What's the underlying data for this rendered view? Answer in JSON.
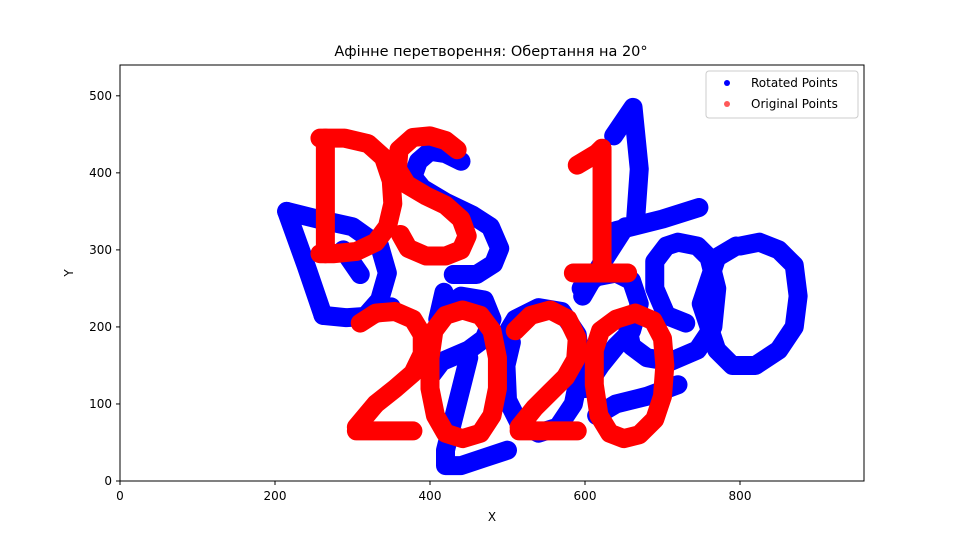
{
  "chart_data": {
    "type": "scatter",
    "title": "Афінне перетворення: Обертання на 20°",
    "xlabel": "X",
    "ylabel": "Y",
    "xlim": [
      0,
      960
    ],
    "ylim": [
      0,
      540
    ],
    "xticks": [
      0,
      200,
      400,
      600,
      800
    ],
    "yticks": [
      0,
      100,
      200,
      300,
      400,
      500
    ],
    "grid": false,
    "legend_placement": "top-right",
    "rotation_degrees": 20,
    "series": [
      {
        "name": "Rotated Points",
        "color": "#0000ff",
        "marker": "circle",
        "shape_text": "DS 1 2020",
        "strokes": [
          [
            [
              215,
              350
            ],
            [
              255,
              340
            ],
            [
              300,
              330
            ],
            [
              335,
              305
            ],
            [
              345,
              270
            ],
            [
              335,
              235
            ],
            [
              315,
              212
            ]
          ],
          [
            [
              215,
              350
            ],
            [
              240,
              280
            ],
            [
              262,
              215
            ]
          ],
          [
            [
              262,
              215
            ],
            [
              292,
              212
            ],
            [
              322,
              214
            ],
            [
              350,
              226
            ]
          ],
          [
            [
              288,
              300
            ],
            [
              310,
              268
            ]
          ],
          [
            [
              440,
              415
            ],
            [
              420,
              425
            ],
            [
              400,
              428
            ],
            [
              385,
              415
            ],
            [
              378,
              395
            ],
            [
              390,
              380
            ],
            [
              420,
              362
            ],
            [
              455,
              345
            ],
            [
              478,
              330
            ],
            [
              490,
              302
            ],
            [
              482,
              282
            ],
            [
              460,
              268
            ],
            [
              430,
              268
            ]
          ],
          [
            [
              410,
              210
            ],
            [
              418,
              245
            ]
          ],
          [
            [
              597,
              240
            ],
            [
              620,
              280
            ],
            [
              652,
              330
            ]
          ],
          [
            [
              637,
              448
            ],
            [
              662,
              485
            ],
            [
              670,
              405
            ],
            [
              665,
              335
            ]
          ],
          [
            [
              640,
              325
            ],
            [
              700,
              340
            ],
            [
              747,
              355
            ]
          ],
          [
            [
              655,
              200
            ],
            [
              660,
              175
            ],
            [
              680,
              160
            ],
            [
              710,
              155
            ],
            [
              745,
              170
            ],
            [
              765,
              200
            ],
            [
              770,
              250
            ],
            [
              760,
              290
            ],
            [
              745,
              305
            ],
            [
              720,
              310
            ],
            [
              705,
              305
            ],
            [
              690,
              285
            ],
            [
              690,
              250
            ],
            [
              705,
              215
            ],
            [
              730,
              205
            ]
          ],
          [
            [
              795,
              305
            ],
            [
              770,
              290
            ],
            [
              750,
              230
            ],
            [
              770,
              170
            ],
            [
              790,
              150
            ],
            [
              820,
              150
            ],
            [
              850,
              170
            ],
            [
              870,
              200
            ],
            [
              875,
              240
            ],
            [
              870,
              280
            ],
            [
              850,
              300
            ],
            [
              825,
              310
            ],
            [
              800,
              305
            ]
          ],
          [
            [
              400,
              135
            ],
            [
              415,
              155
            ],
            [
              450,
              170
            ],
            [
              470,
              185
            ],
            [
              480,
              210
            ],
            [
              470,
              235
            ],
            [
              440,
              240
            ],
            [
              420,
              225
            ]
          ],
          [
            [
              450,
              160
            ],
            [
              440,
              120
            ],
            [
              430,
              80
            ],
            [
              420,
              40
            ],
            [
              420,
              20
            ],
            [
              440,
              20
            ],
            [
              470,
              30
            ],
            [
              500,
              40
            ]
          ],
          [
            [
              495,
              185
            ],
            [
              510,
              210
            ],
            [
              540,
              225
            ],
            [
              570,
              220
            ],
            [
              590,
              190
            ],
            [
              595,
              150
            ],
            [
              585,
              100
            ],
            [
              565,
              70
            ],
            [
              540,
              62
            ],
            [
              515,
              75
            ],
            [
              500,
              105
            ],
            [
              498,
              150
            ],
            [
              505,
              180
            ]
          ],
          [
            [
              600,
              120
            ],
            [
              620,
              150
            ],
            [
              640,
              175
            ],
            [
              660,
              195
            ],
            [
              670,
              230
            ],
            [
              660,
              260
            ],
            [
              640,
              270
            ],
            [
              615,
              265
            ],
            [
              595,
              250
            ]
          ],
          [
            [
              615,
              85
            ],
            [
              640,
              100
            ],
            [
              680,
              110
            ],
            [
              720,
              125
            ]
          ]
        ]
      },
      {
        "name": "Original Points",
        "color": "#ff0000",
        "marker": "circle",
        "shape_text": "DS 1 2020",
        "strokes": [
          [
            [
              265,
              295
            ],
            [
              265,
              445
            ]
          ],
          [
            [
              258,
              445
            ],
            [
              290,
              445
            ],
            [
              320,
              438
            ],
            [
              340,
              420
            ],
            [
              350,
              390
            ],
            [
              352,
              360
            ],
            [
              345,
              330
            ],
            [
              330,
              310
            ],
            [
              305,
              298
            ],
            [
              275,
              295
            ],
            [
              258,
              295
            ]
          ],
          [
            [
              435,
              430
            ],
            [
              420,
              442
            ],
            [
              400,
              448
            ],
            [
              378,
              446
            ],
            [
              360,
              430
            ],
            [
              358,
              405
            ],
            [
              370,
              385
            ],
            [
              395,
              370
            ],
            [
              420,
              358
            ],
            [
              440,
              340
            ],
            [
              448,
              318
            ],
            [
              440,
              300
            ],
            [
              420,
              292
            ],
            [
              395,
              292
            ],
            [
              372,
              302
            ],
            [
              362,
              320
            ]
          ],
          [
            [
              590,
              410
            ],
            [
              615,
              425
            ],
            [
              622,
              432
            ]
          ],
          [
            [
              622,
              430
            ],
            [
              622,
              275
            ]
          ],
          [
            [
              585,
              270
            ],
            [
              655,
              270
            ]
          ],
          [
            [
              310,
              205
            ],
            [
              330,
              218
            ],
            [
              355,
              220
            ],
            [
              378,
              210
            ],
            [
              390,
              190
            ],
            [
              390,
              165
            ],
            [
              378,
              140
            ],
            [
              355,
              120
            ],
            [
              330,
              100
            ],
            [
              305,
              70
            ]
          ],
          [
            [
              305,
              65
            ],
            [
              378,
              65
            ]
          ],
          [
            [
              400,
              160
            ],
            [
              405,
              195
            ],
            [
              420,
              215
            ],
            [
              442,
              222
            ],
            [
              465,
              215
            ],
            [
              480,
              195
            ],
            [
              487,
              160
            ],
            [
              487,
              120
            ],
            [
              480,
              85
            ],
            [
              465,
              62
            ],
            [
              442,
              55
            ],
            [
              420,
              62
            ],
            [
              407,
              85
            ],
            [
              400,
              120
            ],
            [
              400,
              160
            ]
          ],
          [
            [
              510,
              195
            ],
            [
              530,
              215
            ],
            [
              555,
              222
            ],
            [
              578,
              210
            ],
            [
              590,
              185
            ],
            [
              588,
              158
            ],
            [
              575,
              135
            ],
            [
              555,
              115
            ],
            [
              535,
              95
            ],
            [
              515,
              70
            ]
          ],
          [
            [
              515,
              65
            ],
            [
              590,
              65
            ]
          ],
          [
            [
              612,
              170
            ],
            [
              620,
              195
            ],
            [
              640,
              210
            ],
            [
              665,
              218
            ],
            [
              688,
              208
            ],
            [
              700,
              185
            ],
            [
              703,
              150
            ],
            [
              700,
              110
            ],
            [
              690,
              80
            ],
            [
              670,
              60
            ],
            [
              650,
              55
            ],
            [
              632,
              62
            ],
            [
              618,
              85
            ],
            [
              612,
              125
            ],
            [
              612,
              170
            ]
          ]
        ]
      }
    ]
  }
}
